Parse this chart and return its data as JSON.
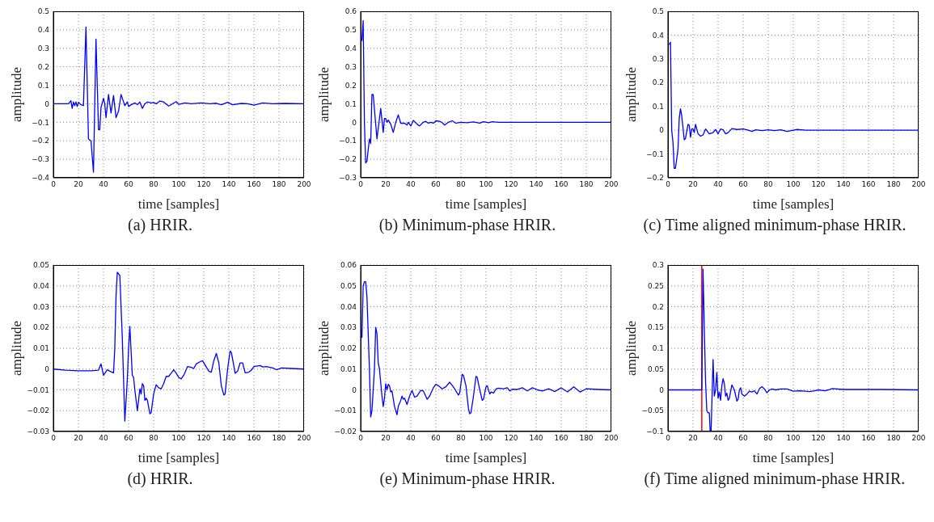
{
  "chart_data": [
    {
      "type": "line",
      "title": "(a) HRIR.",
      "xlabel": "time [samples]",
      "ylabel": "amplitude",
      "color": "#0000ff",
      "grid": true,
      "xlim": [
        0,
        200
      ],
      "xticks": [
        0,
        20,
        40,
        60,
        80,
        100,
        120,
        140,
        160,
        180,
        200
      ],
      "ylim": [
        -0.4,
        0.5
      ],
      "yticks": [
        -0.4,
        -0.3,
        -0.2,
        -0.1,
        0,
        0.1,
        0.2,
        0.3,
        0.4,
        0.5
      ],
      "x": [
        0,
        12,
        14,
        15,
        16,
        17,
        18,
        19,
        20,
        22,
        24,
        26,
        28,
        30,
        32,
        34,
        36,
        37,
        38,
        40,
        41,
        42,
        44,
        46,
        48,
        50,
        52,
        54,
        56,
        57,
        59,
        60,
        62,
        65,
        67,
        69,
        71,
        73,
        75,
        78,
        80,
        82,
        85,
        88,
        92,
        95,
        98,
        100,
        105,
        110,
        118,
        125,
        130,
        134,
        139,
        143,
        150,
        155,
        160,
        167,
        175,
        185,
        200
      ],
      "values": [
        0,
        0,
        0.017,
        -0.025,
        0.01,
        -0.01,
        0.01,
        -0.015,
        0.008,
        -0.005,
        -0.01,
        0.415,
        -0.19,
        -0.2,
        -0.37,
        0.35,
        -0.14,
        -0.14,
        -0.02,
        0.03,
        0,
        -0.075,
        0.05,
        -0.05,
        0.045,
        -0.075,
        -0.04,
        0.05,
        0.01,
        -0.01,
        0.01,
        -0.015,
        -0.005,
        0.005,
        -0.005,
        0.01,
        -0.025,
        0,
        0.01,
        0.005,
        0.007,
        0,
        0.015,
        0.01,
        -0.012,
        0,
        0.012,
        -0.003,
        0.005,
        0,
        0.005,
        0,
        0.003,
        -0.005,
        0.008,
        -0.005,
        0.002,
        0,
        -0.007,
        0.005,
        0,
        0.002,
        0
      ]
    },
    {
      "type": "line",
      "title": "(b) Minimum-phase HRIR.",
      "xlabel": "time [samples]",
      "ylabel": "amplitude",
      "color": "#0000ff",
      "grid": true,
      "xlim": [
        0,
        200
      ],
      "xticks": [
        0,
        20,
        40,
        60,
        80,
        100,
        120,
        140,
        160,
        180,
        200
      ],
      "ylim": [
        -0.3,
        0.6
      ],
      "yticks": [
        -0.3,
        -0.2,
        -0.1,
        0,
        0.1,
        0.2,
        0.3,
        0.4,
        0.5,
        0.6
      ],
      "x": [
        1,
        2,
        3,
        4,
        5,
        7,
        8,
        9,
        10,
        13,
        16,
        18,
        19,
        20,
        21,
        22,
        24,
        26,
        28,
        30,
        32,
        35,
        37,
        38,
        40,
        42,
        45,
        47,
        50,
        52,
        54,
        56,
        58,
        60,
        63,
        65,
        67,
        70,
        73,
        76,
        80,
        85,
        90,
        95,
        98,
        102,
        105,
        110,
        200
      ],
      "values": [
        0.44,
        0.55,
        0,
        -0.22,
        -0.21,
        -0.09,
        -0.115,
        0.15,
        0.15,
        -0.09,
        0.075,
        -0.055,
        0.02,
        0.02,
        0,
        0.012,
        -0.01,
        -0.055,
        0,
        0.04,
        -0.005,
        -0.005,
        -0.015,
        0,
        -0.02,
        0.01,
        -0.01,
        -0.02,
        0,
        0.005,
        -0.005,
        0,
        -0.005,
        0.008,
        0.005,
        -0.002,
        -0.015,
        0,
        0.008,
        -0.005,
        0,
        -0.002,
        0.002,
        -0.005,
        0.003,
        -0.002,
        0.003,
        0,
        0
      ]
    },
    {
      "type": "line",
      "title": "(c) Time aligned minimum-phase HRIR.",
      "xlabel": "time [samples]",
      "ylabel": "amplitude",
      "color": "#0000ff",
      "grid": true,
      "xlim": [
        0,
        200
      ],
      "xticks": [
        0,
        20,
        40,
        60,
        80,
        100,
        120,
        140,
        160,
        180,
        200
      ],
      "ylim": [
        -0.2,
        0.5
      ],
      "yticks": [
        -0.2,
        -0.1,
        0,
        0.1,
        0.2,
        0.3,
        0.4,
        0.5
      ],
      "x": [
        1,
        2,
        3,
        4,
        5,
        6,
        8,
        9,
        10,
        11,
        13,
        14,
        16,
        17,
        18,
        19,
        20,
        21,
        22,
        24,
        26,
        28,
        30,
        33,
        36,
        38,
        40,
        42,
        44,
        46,
        48,
        51,
        55,
        60,
        63,
        67,
        70,
        75,
        80,
        85,
        90,
        95,
        100,
        103,
        110,
        200
      ],
      "values": [
        0.36,
        0.37,
        0,
        -0.05,
        -0.16,
        -0.16,
        -0.08,
        0.05,
        0.09,
        0.06,
        -0.04,
        -0.035,
        0.025,
        0.02,
        -0.03,
        0.005,
        0.005,
        -0.01,
        0.025,
        -0.015,
        -0.025,
        -0.02,
        0.005,
        -0.015,
        -0.01,
        0.003,
        -0.015,
        0.005,
        0.002,
        -0.015,
        -0.01,
        0.007,
        0.003,
        0.005,
        0.002,
        -0.005,
        0.002,
        -0.002,
        0.002,
        -0.002,
        0.002,
        -0.005,
        0,
        0.003,
        0,
        0
      ]
    },
    {
      "type": "line",
      "title": "(d) HRIR.",
      "xlabel": "time [samples]",
      "ylabel": "amplitude",
      "color": "#0000ff",
      "grid": true,
      "xlim": [
        0,
        200
      ],
      "xticks": [
        0,
        20,
        40,
        60,
        80,
        100,
        120,
        140,
        160,
        180,
        200
      ],
      "ylim": [
        -0.03,
        0.05
      ],
      "yticks": [
        -0.03,
        -0.02,
        -0.01,
        0,
        0.01,
        0.02,
        0.03,
        0.04,
        0.05
      ],
      "x": [
        0,
        10,
        20,
        30,
        36,
        38,
        40,
        43,
        45,
        48,
        49,
        50,
        51,
        53,
        55,
        57,
        59,
        60,
        61,
        63,
        64,
        65,
        67,
        68,
        69,
        70,
        71,
        72,
        73,
        74,
        75,
        77,
        78,
        80,
        82,
        84,
        86,
        88,
        90,
        92,
        94,
        96,
        98,
        100,
        102,
        104,
        107,
        110,
        112,
        114,
        117,
        119,
        121,
        124,
        126,
        128,
        130,
        132,
        134,
        136,
        137,
        139,
        141,
        142,
        144,
        145,
        147,
        149,
        151,
        153,
        156,
        158,
        160,
        165,
        167,
        170,
        175,
        178,
        182,
        190,
        200
      ],
      "values": [
        0,
        -0.0005,
        -0.0008,
        -0.0008,
        -0.0005,
        0.0025,
        -0.003,
        -0.0003,
        -0.001,
        -0.0018,
        0.01,
        0.035,
        0.0465,
        0.045,
        0.015,
        -0.025,
        -0.005,
        0.01,
        0.0205,
        -0.003,
        -0.004,
        -0.01,
        -0.02,
        -0.015,
        -0.0095,
        -0.012,
        -0.007,
        -0.008,
        -0.015,
        -0.014,
        -0.015,
        -0.0215,
        -0.021,
        -0.012,
        -0.0075,
        -0.009,
        -0.0095,
        -0.007,
        -0.0035,
        -0.0035,
        -0.002,
        -0.0003,
        -0.002,
        -0.004,
        -0.0047,
        -0.003,
        0.0012,
        0.0008,
        0.0003,
        0.0025,
        0.0035,
        0.004,
        0.002,
        -0.001,
        -0.0015,
        0.004,
        0.0075,
        0.003,
        -0.008,
        -0.0125,
        -0.012,
        0,
        0.0087,
        0.008,
        0.0015,
        -0.002,
        -0.001,
        0.003,
        0.003,
        -0.0018,
        -0.0015,
        -0.0005,
        0.0012,
        0.0017,
        0.001,
        0.0012,
        0.0005,
        -0.0003,
        0.0005,
        0.0003,
        0
      ]
    },
    {
      "type": "line",
      "title": "(e) Minimum-phase HRIR.",
      "xlabel": "time [samples]",
      "ylabel": "amplitude",
      "color": "#0000ff",
      "grid": true,
      "xlim": [
        0,
        200
      ],
      "xticks": [
        0,
        20,
        40,
        60,
        80,
        100,
        120,
        140,
        160,
        180,
        200
      ],
      "ylim": [
        -0.02,
        0.06
      ],
      "yticks": [
        -0.02,
        -0.01,
        0,
        0.01,
        0.02,
        0.03,
        0.04,
        0.05,
        0.06
      ],
      "x": [
        1,
        2,
        3,
        4,
        5,
        7,
        8,
        9,
        11,
        12,
        13,
        14,
        15,
        17,
        18,
        19,
        20,
        21,
        22,
        23,
        24,
        25,
        27,
        29,
        30,
        32,
        33,
        34,
        35,
        37,
        39,
        41,
        43,
        45,
        48,
        50,
        53,
        55,
        58,
        60,
        62,
        65,
        68,
        71,
        73,
        75,
        78,
        79,
        81,
        82,
        84,
        86,
        87,
        88,
        90,
        92,
        93,
        95,
        97,
        98,
        100,
        101,
        103,
        104,
        106,
        108,
        110,
        114,
        117,
        119,
        121,
        125,
        129,
        133,
        137,
        141,
        145,
        150,
        155,
        160,
        165,
        170,
        175,
        180,
        190,
        200
      ],
      "values": [
        0.025,
        0.05,
        0.052,
        0.052,
        0.045,
        0.01,
        -0.013,
        -0.01,
        0.01,
        0.03,
        0.027,
        0.013,
        0.01,
        -0.003,
        -0.008,
        -0.004,
        0.003,
        0,
        0.0027,
        0.002,
        -0.001,
        -0.0005,
        -0.008,
        -0.012,
        -0.008,
        -0.005,
        -0.003,
        -0.0045,
        -0.004,
        -0.007,
        -0.003,
        -0.0003,
        -0.0035,
        -0.003,
        -0.0002,
        -0.0005,
        -0.0045,
        -0.003,
        0.001,
        0.0027,
        0.002,
        0.0005,
        0.0015,
        0.0037,
        0.0022,
        0.0005,
        -0.0025,
        -0.0015,
        0.0075,
        0.007,
        0.002,
        -0.009,
        -0.0115,
        -0.011,
        -0.003,
        0.0065,
        0.006,
        0,
        -0.005,
        -0.0045,
        0.0015,
        0.002,
        -0.002,
        -0.001,
        -0.0015,
        0.0005,
        0.0008,
        0.0005,
        0.001,
        -0.0005,
        0.0003,
        0.0002,
        0.001,
        -0.0005,
        0.001,
        0,
        -0.0005,
        0.0005,
        -0.0008,
        0.001,
        -0.001,
        0.0015,
        -0.001,
        0.0005,
        0.0002,
        0
      ]
    },
    {
      "type": "line",
      "title": "(f) Time aligned minimum-phase HRIR.",
      "xlabel": "time [samples]",
      "ylabel": "amplitude",
      "color": "#0000ff",
      "grid": true,
      "xlim": [
        0,
        200
      ],
      "xticks": [
        0,
        20,
        40,
        60,
        80,
        100,
        120,
        140,
        160,
        180,
        200
      ],
      "ylim": [
        -0.1,
        0.3
      ],
      "yticks": [
        -0.1,
        -0.05,
        0,
        0.05,
        0.1,
        0.15,
        0.2,
        0.25,
        0.3
      ],
      "ref_lines": [
        {
          "axis": "x",
          "value": 27,
          "color": "#ff0000"
        }
      ],
      "x": [
        0,
        27,
        28,
        29,
        30,
        31,
        32,
        33,
        33.7,
        34,
        34.4,
        36,
        37,
        38,
        39,
        40,
        41,
        42,
        43,
        44,
        45,
        46,
        47,
        48,
        49,
        51,
        53,
        55,
        56,
        57,
        58,
        59,
        61,
        63,
        65,
        67,
        69,
        71,
        73,
        75,
        77,
        79,
        81,
        83,
        86,
        90,
        95,
        100,
        105,
        110,
        113,
        117,
        120,
        125,
        128,
        131,
        140,
        150,
        170,
        200
      ],
      "values": [
        0,
        0,
        0.29,
        0.15,
        0.02,
        -0.05,
        -0.055,
        -0.055,
        -0.1,
        null,
        -0.1,
        0.073,
        -0.015,
        0,
        0.042,
        -0.02,
        -0.005,
        -0.025,
        0.01,
        0.027,
        0.015,
        -0.015,
        -0.008,
        -0.025,
        -0.02,
        0.012,
        0,
        -0.027,
        -0.022,
        0,
        0.005,
        -0.01,
        -0.015,
        -0.01,
        -0.003,
        -0.005,
        -0.002,
        -0.01,
        0.003,
        0.008,
        0.002,
        -0.007,
        0,
        0.002,
        0,
        0.002,
        0.002,
        -0.003,
        -0.002,
        -0.003,
        -0.004,
        -0.002,
        0,
        -0.002,
        0,
        0.003,
        0.001,
        0.001,
        0.001,
        0
      ]
    }
  ]
}
